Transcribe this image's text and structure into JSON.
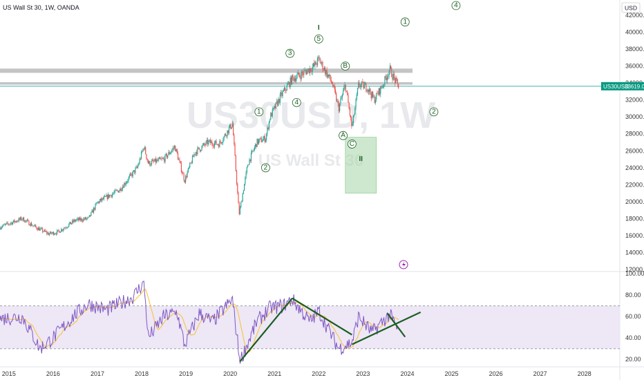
{
  "header": {
    "symbol_line": "US Wall St 30, 1W, OANDA",
    "currency_button": "USD"
  },
  "watermark": {
    "ticker": "US30USD, 1W",
    "name": "US Wall St 30"
  },
  "price_tag": {
    "label": "US30USD",
    "value": "33619.0"
  },
  "chart_data": [
    {
      "type": "line",
      "subtype": "candlestick",
      "x_range": [
        2014.8,
        2028.8
      ],
      "ylim": [
        12000,
        42000
      ],
      "y_ticks": [
        "12000.0",
        "14000.0",
        "16000.0",
        "18000.0",
        "20000.0",
        "22000.0",
        "24000.0",
        "26000.0",
        "28000.0",
        "30000.0",
        "32000.0",
        "34000.0",
        "36000.0",
        "38000.0",
        "40000.0",
        "42000.0"
      ],
      "x_ticks": [
        "2015",
        "2016",
        "2017",
        "2018",
        "2019",
        "2020",
        "2021",
        "2022",
        "2023",
        "2024",
        "2025",
        "2026",
        "2027",
        "2028"
      ],
      "last_price": 33619.0,
      "approx_weekly_close_path": [
        {
          "x": 2014.8,
          "y": 17000
        },
        {
          "x": 2015.3,
          "y": 18000
        },
        {
          "x": 2015.6,
          "y": 17000
        },
        {
          "x": 2015.9,
          "y": 16200
        },
        {
          "x": 2016.1,
          "y": 16400
        },
        {
          "x": 2016.5,
          "y": 17800
        },
        {
          "x": 2016.8,
          "y": 18000
        },
        {
          "x": 2017.0,
          "y": 19900
        },
        {
          "x": 2017.5,
          "y": 21400
        },
        {
          "x": 2017.9,
          "y": 24000
        },
        {
          "x": 2018.05,
          "y": 26500
        },
        {
          "x": 2018.15,
          "y": 24500
        },
        {
          "x": 2018.5,
          "y": 25000
        },
        {
          "x": 2018.75,
          "y": 26500
        },
        {
          "x": 2018.97,
          "y": 22500
        },
        {
          "x": 2019.2,
          "y": 25800
        },
        {
          "x": 2019.5,
          "y": 27000
        },
        {
          "x": 2019.75,
          "y": 26800
        },
        {
          "x": 2020.05,
          "y": 29200
        },
        {
          "x": 2020.2,
          "y": 18500
        },
        {
          "x": 2020.4,
          "y": 24500
        },
        {
          "x": 2020.6,
          "y": 27000
        },
        {
          "x": 2020.8,
          "y": 27500
        },
        {
          "x": 2020.9,
          "y": 30000
        },
        {
          "x": 2021.15,
          "y": 32500
        },
        {
          "x": 2021.4,
          "y": 34500
        },
        {
          "x": 2021.6,
          "y": 35000
        },
        {
          "x": 2021.9,
          "y": 36000
        },
        {
          "x": 2022.0,
          "y": 36800
        },
        {
          "x": 2022.3,
          "y": 34000
        },
        {
          "x": 2022.45,
          "y": 31000
        },
        {
          "x": 2022.6,
          "y": 33800
        },
        {
          "x": 2022.75,
          "y": 28700
        },
        {
          "x": 2022.9,
          "y": 33800
        },
        {
          "x": 2023.1,
          "y": 33500
        },
        {
          "x": 2023.25,
          "y": 32000
        },
        {
          "x": 2023.45,
          "y": 33800
        },
        {
          "x": 2023.6,
          "y": 35600
        },
        {
          "x": 2023.75,
          "y": 34000
        },
        {
          "x": 2023.8,
          "y": 33619
        }
      ],
      "horizontal_zones": [
        {
          "from": 35200,
          "to": 35700,
          "color": "#c4c4c4"
        },
        {
          "from": 33800,
          "to": 34100,
          "color": "#c4c4c4"
        }
      ],
      "highlight_box": {
        "x0": 2022.6,
        "x1": 2023.3,
        "y0": 21000,
        "y1": 27600,
        "color": "#a5d6a7"
      },
      "annotations": [
        {
          "text": "1",
          "x": 2020.65,
          "y": 30600
        },
        {
          "text": "2",
          "x": 2020.8,
          "y": 24000
        },
        {
          "text": "3",
          "x": 2021.35,
          "y": 37500
        },
        {
          "text": "4",
          "x": 2021.5,
          "y": 31700
        },
        {
          "text": "5",
          "x": 2022.0,
          "y": 39200
        },
        {
          "text": "I",
          "x": 2022.0,
          "y": 40500
        },
        {
          "text": "A",
          "x": 2022.55,
          "y": 27800
        },
        {
          "text": "B",
          "x": 2022.6,
          "y": 36000
        },
        {
          "text": "C",
          "x": 2022.75,
          "y": 26800
        },
        {
          "text": "II",
          "x": 2022.95,
          "y": 25000
        },
        {
          "text": "1",
          "x": 2023.95,
          "y": 41200
        },
        {
          "text": "2",
          "x": 2024.6,
          "y": 30600
        },
        {
          "text": "4",
          "x": 2025.1,
          "y": 43500
        }
      ]
    },
    {
      "type": "line",
      "subtype": "rsi",
      "ylim": [
        15,
        100
      ],
      "y_ticks": [
        "20.00",
        "40.00",
        "60.00",
        "80.00",
        "100.00"
      ],
      "band": [
        30,
        70
      ],
      "approx_rsi_path": [
        {
          "x": 2014.8,
          "y": 58
        },
        {
          "x": 2015.3,
          "y": 60
        },
        {
          "x": 2015.6,
          "y": 38
        },
        {
          "x": 2015.7,
          "y": 30
        },
        {
          "x": 2016.0,
          "y": 40
        },
        {
          "x": 2016.5,
          "y": 62
        },
        {
          "x": 2016.8,
          "y": 72
        },
        {
          "x": 2017.2,
          "y": 66
        },
        {
          "x": 2017.8,
          "y": 78
        },
        {
          "x": 2018.05,
          "y": 92
        },
        {
          "x": 2018.15,
          "y": 40
        },
        {
          "x": 2018.5,
          "y": 60
        },
        {
          "x": 2018.8,
          "y": 64
        },
        {
          "x": 2018.97,
          "y": 33
        },
        {
          "x": 2019.3,
          "y": 63
        },
        {
          "x": 2019.6,
          "y": 55
        },
        {
          "x": 2020.05,
          "y": 76
        },
        {
          "x": 2020.22,
          "y": 18
        },
        {
          "x": 2020.6,
          "y": 55
        },
        {
          "x": 2020.9,
          "y": 68
        },
        {
          "x": 2021.2,
          "y": 70
        },
        {
          "x": 2021.4,
          "y": 76
        },
        {
          "x": 2021.8,
          "y": 55
        },
        {
          "x": 2022.0,
          "y": 65
        },
        {
          "x": 2022.45,
          "y": 30
        },
        {
          "x": 2022.75,
          "y": 36
        },
        {
          "x": 2022.9,
          "y": 60
        },
        {
          "x": 2023.2,
          "y": 45
        },
        {
          "x": 2023.6,
          "y": 62
        },
        {
          "x": 2023.8,
          "y": 46
        }
      ],
      "trend_lines": [
        {
          "x0": 2020.22,
          "y0": 18,
          "x1": 2021.4,
          "y1": 77
        },
        {
          "x0": 2021.4,
          "y0": 77,
          "x1": 2022.75,
          "y1": 43
        },
        {
          "x0": 2022.75,
          "y0": 34,
          "x1": 2024.3,
          "y1": 64
        },
        {
          "x0": 2023.55,
          "y0": 63,
          "x1": 2023.95,
          "y1": 41
        }
      ]
    }
  ],
  "colors": {
    "up": "#26a69a",
    "down": "#ef5350",
    "rsi": "#7e57c2",
    "rsi_ma": "#fbc02d",
    "trend": "#1b5e20",
    "band": "#ede7f6",
    "price_tag": "#089981"
  }
}
